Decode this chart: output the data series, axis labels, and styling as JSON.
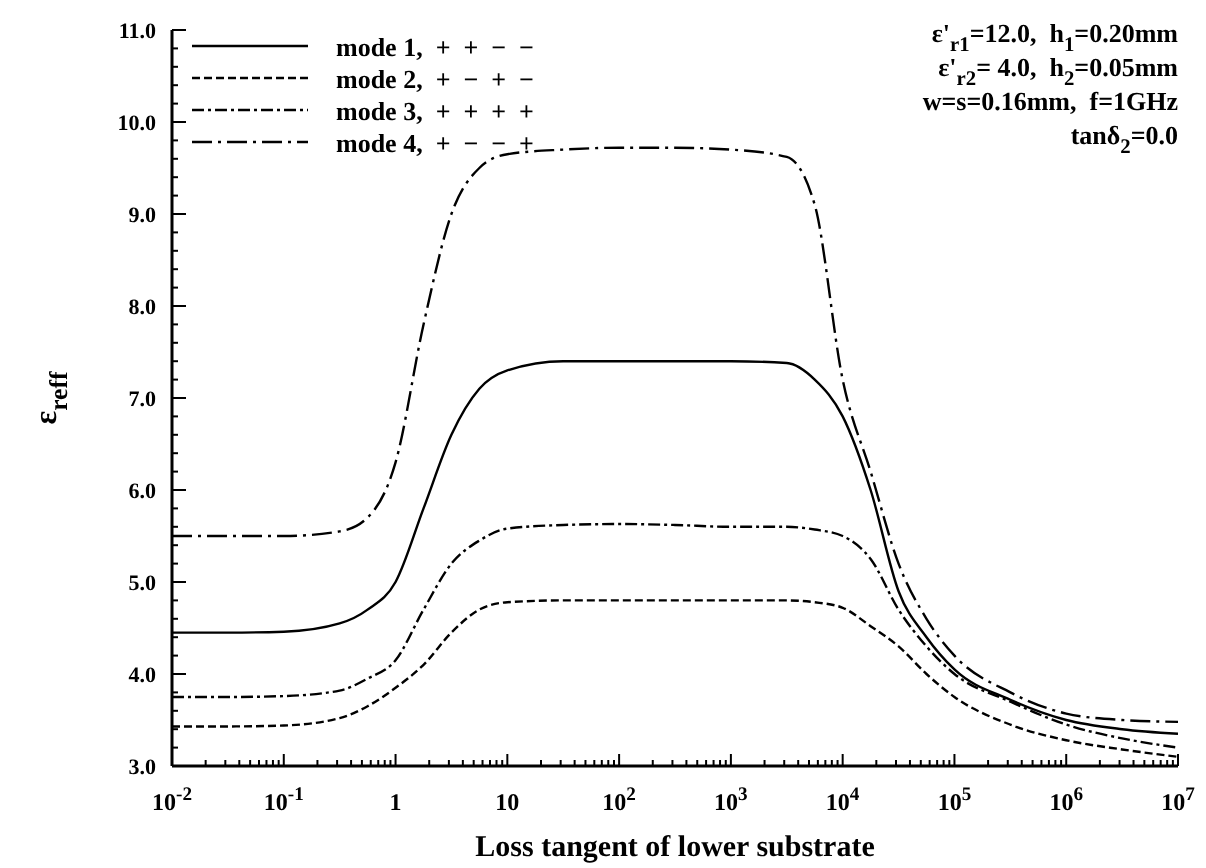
{
  "chart_data": {
    "type": "line",
    "xlabel": "Loss tangent of lower substrate",
    "ylabel": "ε$_{reff}$",
    "log": "x",
    "x": [
      0.01,
      0.0316,
      0.1,
      0.316,
      0.562,
      1,
      1.78,
      3.16,
      5.62,
      10,
      31.6,
      100,
      316,
      1000,
      3162,
      5623,
      10000,
      17783,
      31623,
      56234,
      100000,
      316228,
      1000000,
      3162278,
      10000000
    ],
    "series": [
      {
        "name": "mode 1,  +  +  −  −",
        "color": "#000000",
        "line_style": "solid",
        "values": [
          4.45,
          4.45,
          4.46,
          4.55,
          4.7,
          5.0,
          5.8,
          6.6,
          7.1,
          7.3,
          7.4,
          7.4,
          7.4,
          7.4,
          7.38,
          7.2,
          6.8,
          6.0,
          4.9,
          4.4,
          4.05,
          3.72,
          3.5,
          3.4,
          3.35
        ]
      },
      {
        "name": "mode 2,  +  −  +  −",
        "color": "#000000",
        "line_style": "dashed",
        "values": [
          3.43,
          3.43,
          3.44,
          3.52,
          3.65,
          3.85,
          4.1,
          4.45,
          4.7,
          4.78,
          4.8,
          4.8,
          4.8,
          4.8,
          4.8,
          4.78,
          4.72,
          4.52,
          4.3,
          4.0,
          3.75,
          3.45,
          3.28,
          3.18,
          3.1
        ]
      },
      {
        "name": "mode 3,  +  +  +  +",
        "color": "#000000",
        "line_style": "dashdot",
        "values": [
          3.75,
          3.75,
          3.76,
          3.82,
          3.95,
          4.15,
          4.7,
          5.2,
          5.45,
          5.58,
          5.62,
          5.63,
          5.62,
          5.6,
          5.6,
          5.57,
          5.5,
          5.25,
          4.7,
          4.3,
          4.0,
          3.7,
          3.45,
          3.3,
          3.2
        ]
      },
      {
        "name": "mode 4,  +  −  −  +",
        "color": "#000000",
        "line_style": "longdashdot",
        "values": [
          5.5,
          5.5,
          5.5,
          5.55,
          5.7,
          6.3,
          7.8,
          9.0,
          9.5,
          9.65,
          9.7,
          9.72,
          9.72,
          9.7,
          9.62,
          9.1,
          7.2,
          6.2,
          5.2,
          4.6,
          4.2,
          3.8,
          3.57,
          3.5,
          3.48
        ]
      }
    ],
    "xlim": [
      0.01,
      10000000
    ],
    "xticks": [
      {
        "value": 0.01,
        "label": "10$^{-2}$"
      },
      {
        "value": 0.1,
        "label": "10$^{-1}$"
      },
      1,
      10,
      {
        "value": 100,
        "label": "10$^{2}$"
      },
      {
        "value": 1000,
        "label": "10$^{3}$"
      },
      {
        "value": 10000,
        "label": "10$^{4}$"
      },
      {
        "value": 100000,
        "label": "10$^{5}$"
      },
      {
        "value": 1000000,
        "label": "10$^{6}$"
      },
      {
        "value": 10000000,
        "label": "10$^{7}$"
      }
    ],
    "ylim": [
      3,
      11
    ],
    "yticks": [
      {
        "value": 3,
        "label": "3.0"
      },
      {
        "value": 4,
        "label": "4.0"
      },
      {
        "value": 5,
        "label": "5.0"
      },
      {
        "value": 6,
        "label": "6.0"
      },
      {
        "value": 7,
        "label": "7.0"
      },
      {
        "value": 8,
        "label": "8.0"
      },
      {
        "value": 9,
        "label": "9.0"
      },
      {
        "value": 10,
        "label": "10.0"
      },
      {
        "value": 11,
        "label": "11.0"
      }
    ],
    "grid": false,
    "legend": "top left",
    "annotations": [
      "ε'$_{r1}$=12.0,  h$_{1}$=0.20mm",
      "ε'$_{r2}$= 4.0,  h$_{2}$=0.05mm",
      "w=s=0.16mm,  f=1GHz",
      "tanδ$_{2}$=0.0"
    ]
  }
}
